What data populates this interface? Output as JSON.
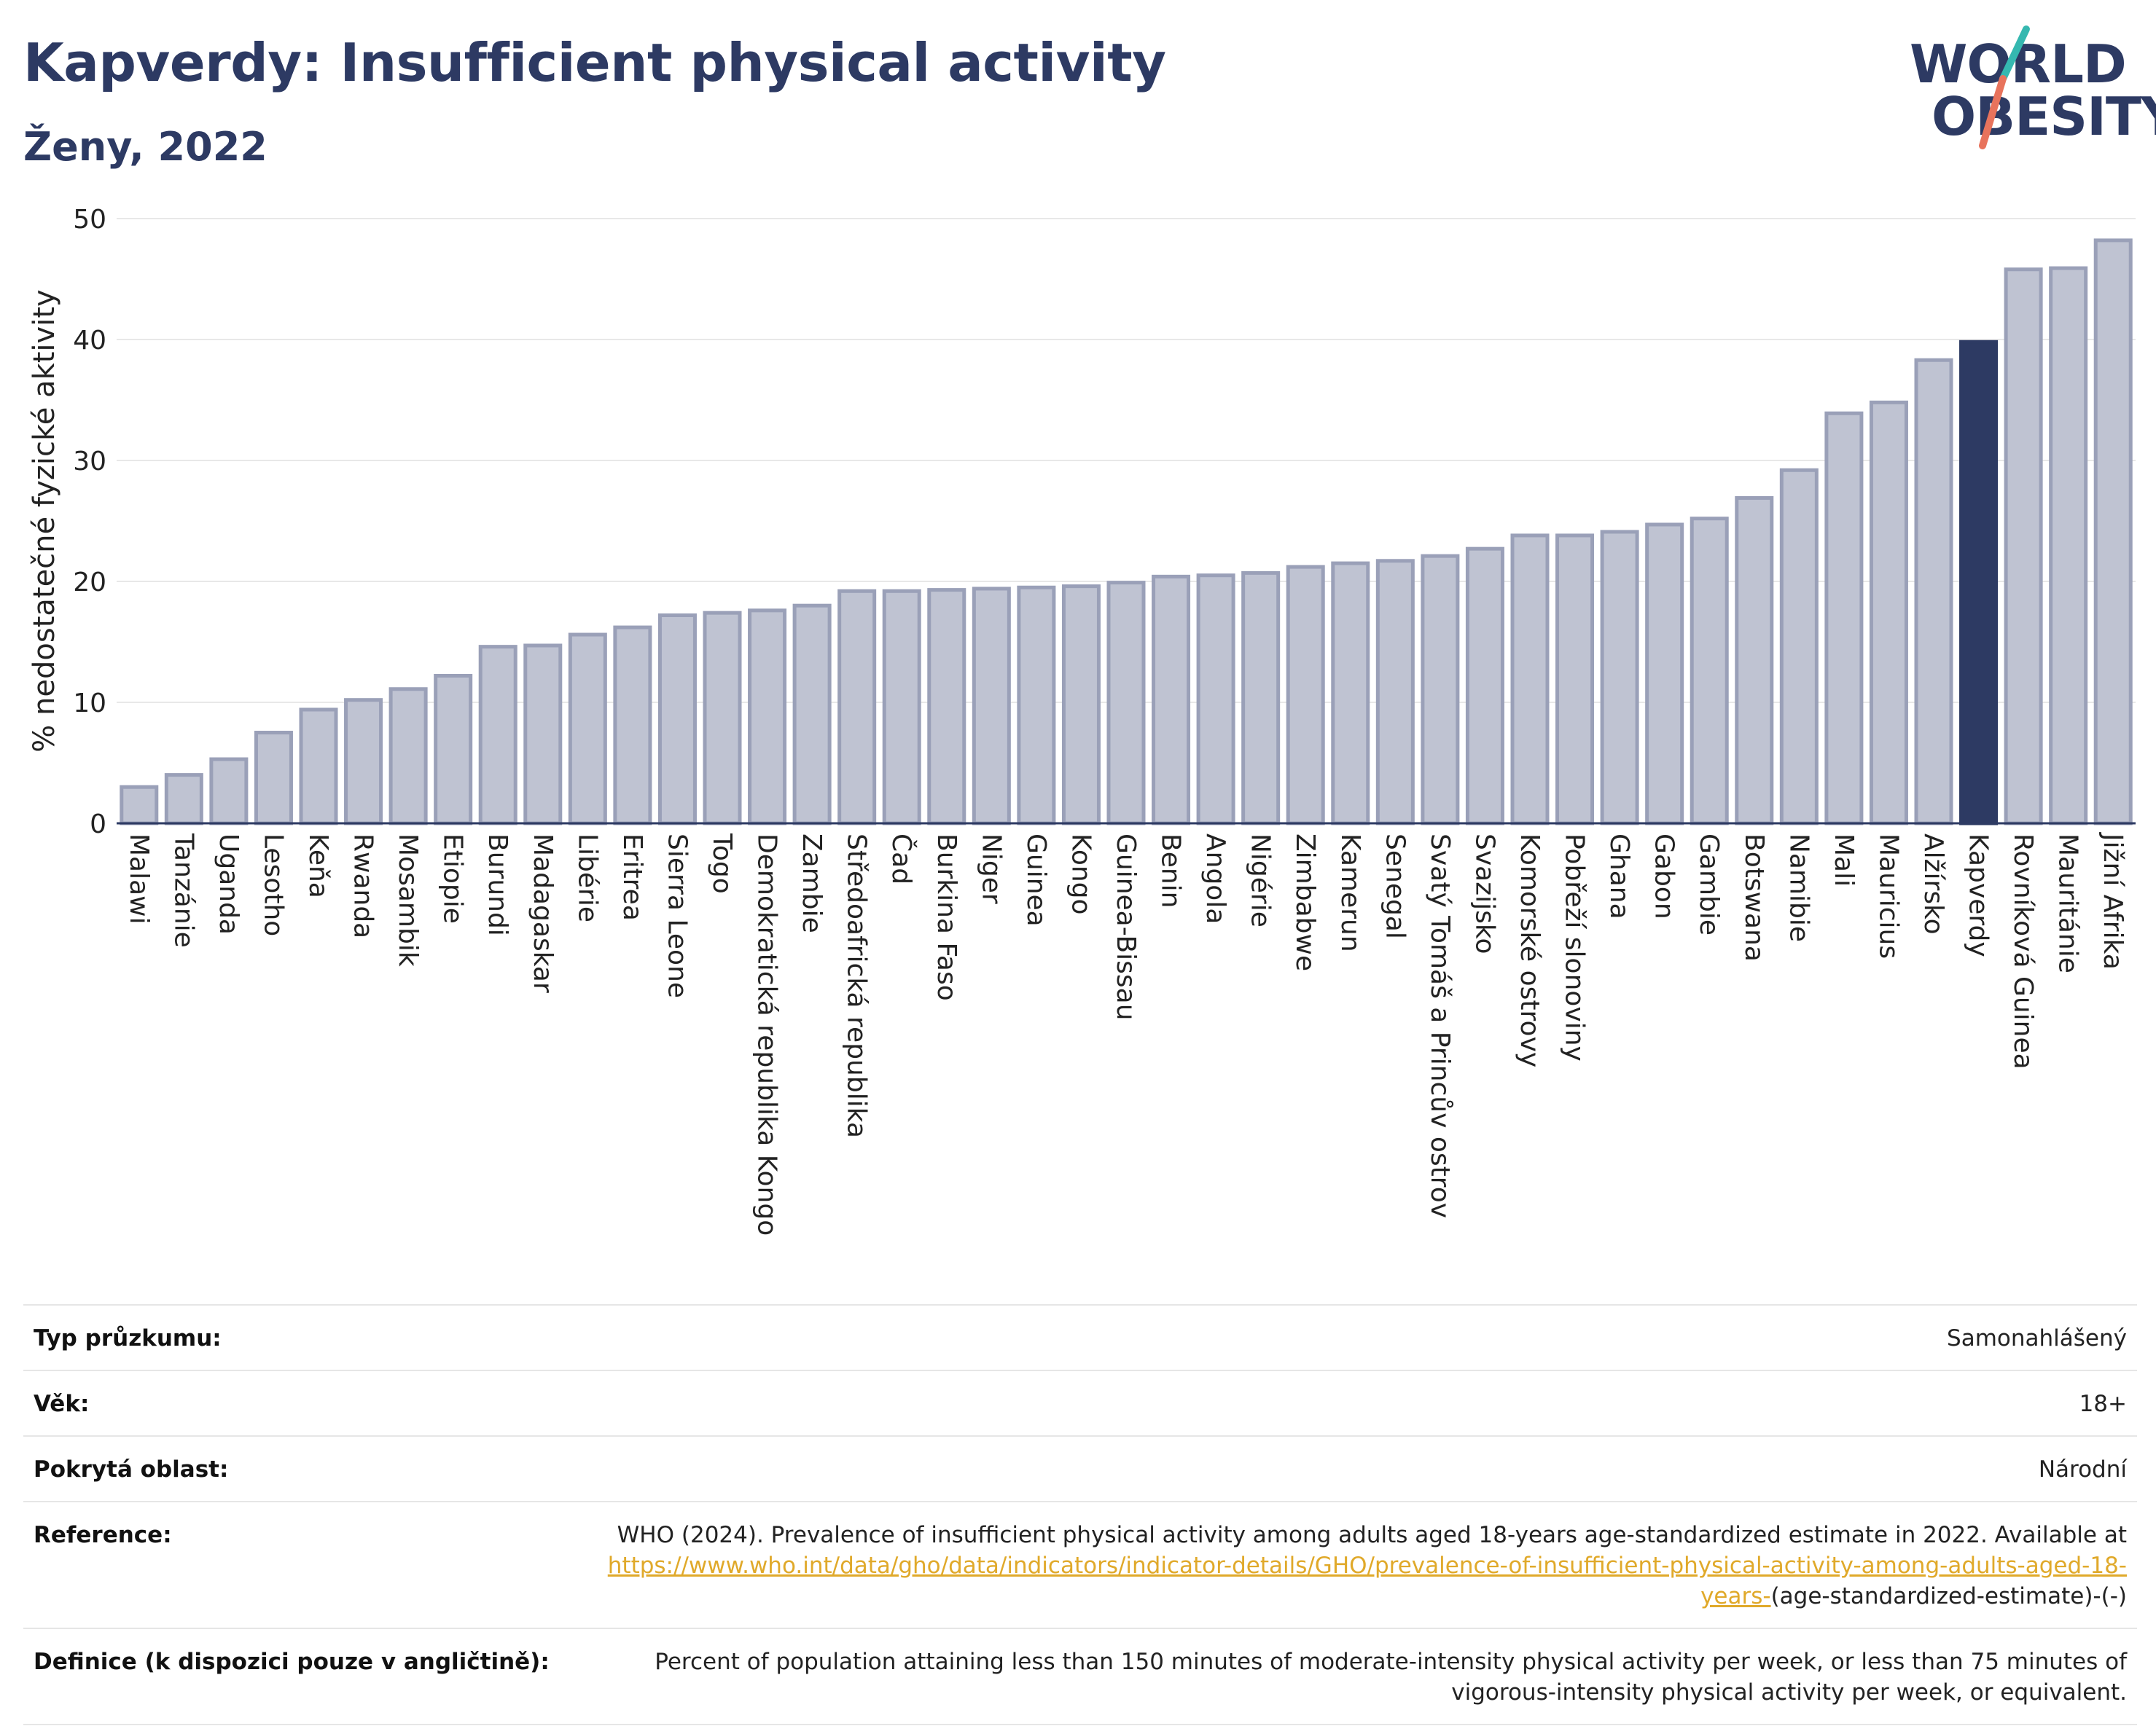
{
  "header": {
    "title": "Kapverdy: Insufficient physical activity",
    "subtitle": "Ženy, 2022"
  },
  "logo": {
    "line1": "WORLD",
    "line2": "OBESITY"
  },
  "colors": {
    "bar": "#bfc3d2",
    "bar_border": "#9aa0b8",
    "highlight": "#2d3a63",
    "grid": "#e8e8e8",
    "accent_teal": "#35b8b0",
    "accent_red": "#e8735c"
  },
  "chart_data": {
    "type": "bar",
    "ylabel": "% nedostatečné fyzické aktivity",
    "xlabel": "",
    "ylim": [
      0,
      50
    ],
    "yticks": [
      0,
      10,
      20,
      30,
      40,
      50
    ],
    "grid": true,
    "highlight": "Kapverdy",
    "categories": [
      "Malawi",
      "Tanzánie",
      "Uganda",
      "Lesotho",
      "Keňa",
      "Rwanda",
      "Mosambik",
      "Etiopie",
      "Burundi",
      "Madagaskar",
      "Libérie",
      "Eritrea",
      "Sierra Leone",
      "Togo",
      "Demokratická republika Kongo",
      "Zambie",
      "Středoafrická republika",
      "Čad",
      "Burkina Faso",
      "Niger",
      "Guinea",
      "Kongo",
      "Guinea-Bissau",
      "Benin",
      "Angola",
      "Nigérie",
      "Zimbabwe",
      "Kamerun",
      "Senegal",
      "Svatý Tomáš a Princův ostrov",
      "Svazijsko",
      "Komorské ostrovy",
      "Pobřeží slonoviny",
      "Ghana",
      "Gabon",
      "Gambie",
      "Botswana",
      "Namibie",
      "Mali",
      "Mauricius",
      "Alžírsko",
      "Kapverdy",
      "Rovníková Guinea",
      "Mauritánie",
      "Jižní Afrika"
    ],
    "values": [
      3.0,
      4.0,
      5.3,
      7.5,
      9.4,
      10.2,
      11.1,
      12.2,
      14.6,
      14.7,
      15.6,
      16.2,
      17.2,
      17.4,
      17.6,
      18.0,
      19.2,
      19.2,
      19.3,
      19.4,
      19.5,
      19.6,
      19.9,
      20.4,
      20.5,
      20.7,
      21.2,
      21.5,
      21.7,
      22.1,
      22.7,
      23.8,
      23.8,
      24.1,
      24.7,
      25.2,
      26.9,
      29.2,
      33.9,
      34.8,
      38.3,
      39.8,
      45.8,
      45.9,
      48.2
    ]
  },
  "info_table": [
    {
      "label": "Typ průzkumu:",
      "value": "Samonahlášený"
    },
    {
      "label": "Věk:",
      "value": "18+"
    },
    {
      "label": "Pokrytá oblast:",
      "value": "Národní"
    },
    {
      "label": "Reference:",
      "value_prefix": "WHO (2024). Prevalence of insufficient physical activity among adults aged 18-years age-standardized estimate in 2022. Available at ",
      "link_text": "https://www.who.int/data/gho/data/indicators/indicator-details/GHO/prevalence-of-insufficient-physical-activity-among-adults-aged-18-years-",
      "value_suffix": "(age-standardized-estimate)-(-)"
    },
    {
      "label": "Definice (k dispozici pouze v angličtině):",
      "value": "Percent of population attaining less than 150 minutes of moderate-intensity physical activity per week, or less than 75 minutes of vigorous-intensity physical activity per week, or equivalent."
    }
  ]
}
